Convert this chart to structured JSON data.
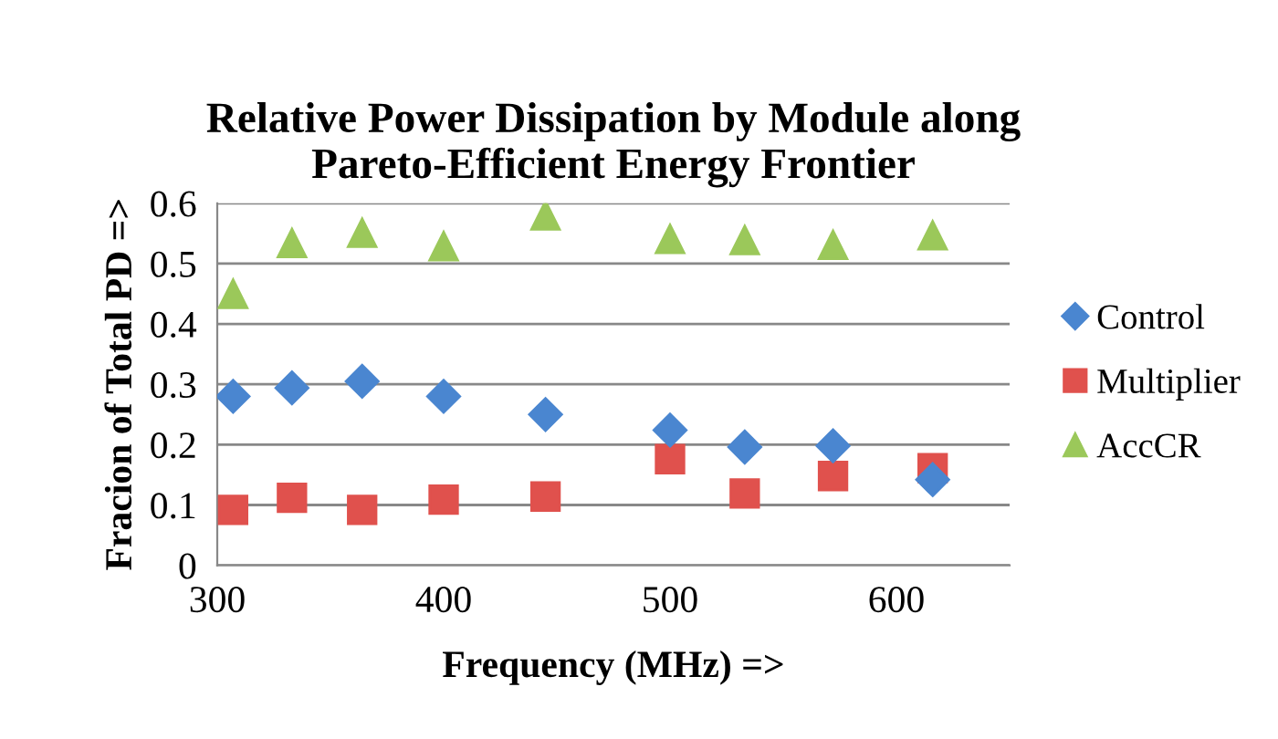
{
  "chart_data": {
    "type": "scatter",
    "title": "Relative Power Dissipation by Module along\nPareto-Efficient Energy Frontier",
    "xlabel": "Frequency (MHz) =>",
    "ylabel": "Fracion of Total PD =>",
    "x": [
      307,
      333,
      364,
      400,
      445,
      500,
      533,
      572,
      616
    ],
    "series": [
      {
        "name": "Control",
        "color": "#4a86d0",
        "marker": "diamond",
        "values": [
          0.28,
          0.294,
          0.305,
          0.28,
          0.25,
          0.224,
          0.196,
          0.198,
          0.142
        ]
      },
      {
        "name": "Multiplier",
        "color": "#e0514d",
        "marker": "square",
        "values": [
          0.092,
          0.112,
          0.092,
          0.109,
          0.114,
          0.176,
          0.119,
          0.148,
          0.161
        ]
      },
      {
        "name": "AccCR",
        "color": "#9bc85a",
        "marker": "triangle",
        "values": [
          0.45,
          0.534,
          0.551,
          0.529,
          0.58,
          0.541,
          0.539,
          0.531,
          0.547
        ]
      }
    ],
    "xlim": [
      300,
      650
    ],
    "xticks": [
      300,
      400,
      500,
      600
    ],
    "ylim": [
      0,
      0.6
    ],
    "yticks": [
      0,
      0.1,
      0.2,
      0.3,
      0.4,
      0.5,
      0.6
    ],
    "grid": "y",
    "legend": "right"
  }
}
